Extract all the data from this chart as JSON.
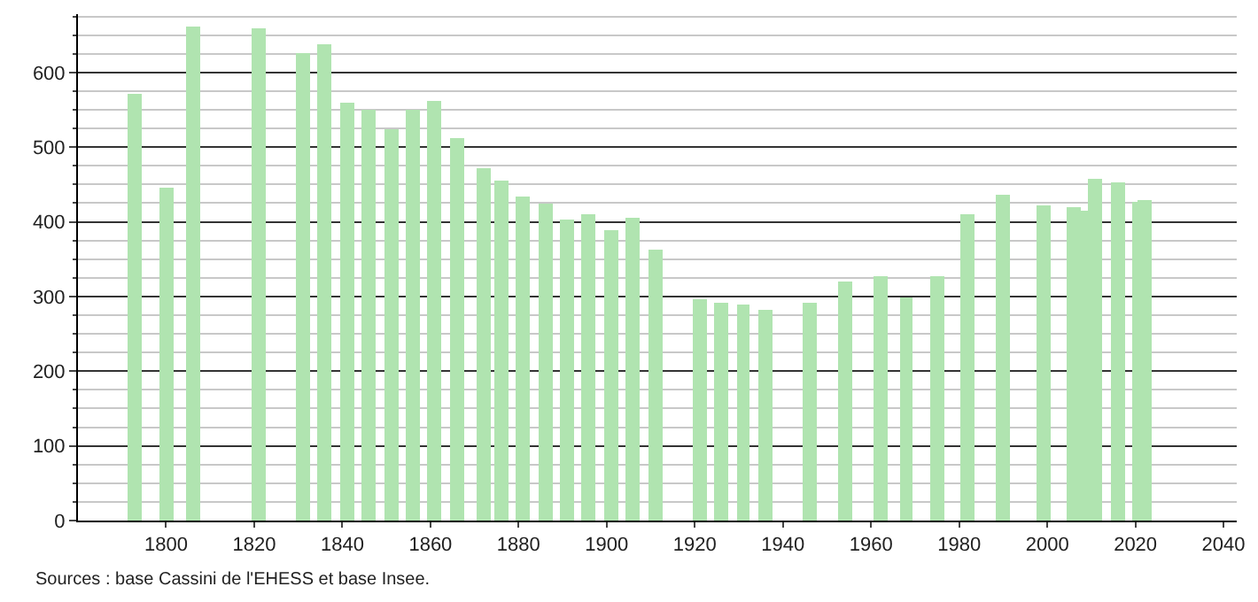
{
  "chart_data": {
    "type": "bar",
    "x": [
      1793,
      1800,
      1806,
      1821,
      1831,
      1836,
      1841,
      1846,
      1851,
      1856,
      1861,
      1866,
      1872,
      1876,
      1881,
      1886,
      1891,
      1896,
      1901,
      1906,
      1911,
      1921,
      1926,
      1931,
      1936,
      1946,
      1954,
      1962,
      1968,
      1975,
      1982,
      1990,
      1999,
      2006,
      2008,
      2011,
      2016,
      2021,
      2022
    ],
    "values": [
      572,
      446,
      661,
      658,
      626,
      637,
      560,
      551,
      525,
      551,
      563,
      511,
      472,
      455,
      434,
      424,
      404,
      409,
      388,
      406,
      362,
      297,
      292,
      290,
      283,
      292,
      320,
      326,
      298,
      326,
      409,
      436,
      423,
      420,
      416,
      457,
      453,
      427,
      430
    ],
    "color": "#b0e4b0",
    "xlim": [
      1780,
      2043
    ],
    "xticks": [
      1800,
      1820,
      1840,
      1860,
      1880,
      1900,
      1920,
      1940,
      1960,
      1980,
      2000,
      2020,
      2040
    ],
    "ylim": [
      0,
      678
    ],
    "yticks": [
      0,
      100,
      200,
      300,
      400,
      500,
      600
    ],
    "grid": "y",
    "annotations": [
      "Sources : base Cassini de l'EHESS et base Insee."
    ]
  }
}
